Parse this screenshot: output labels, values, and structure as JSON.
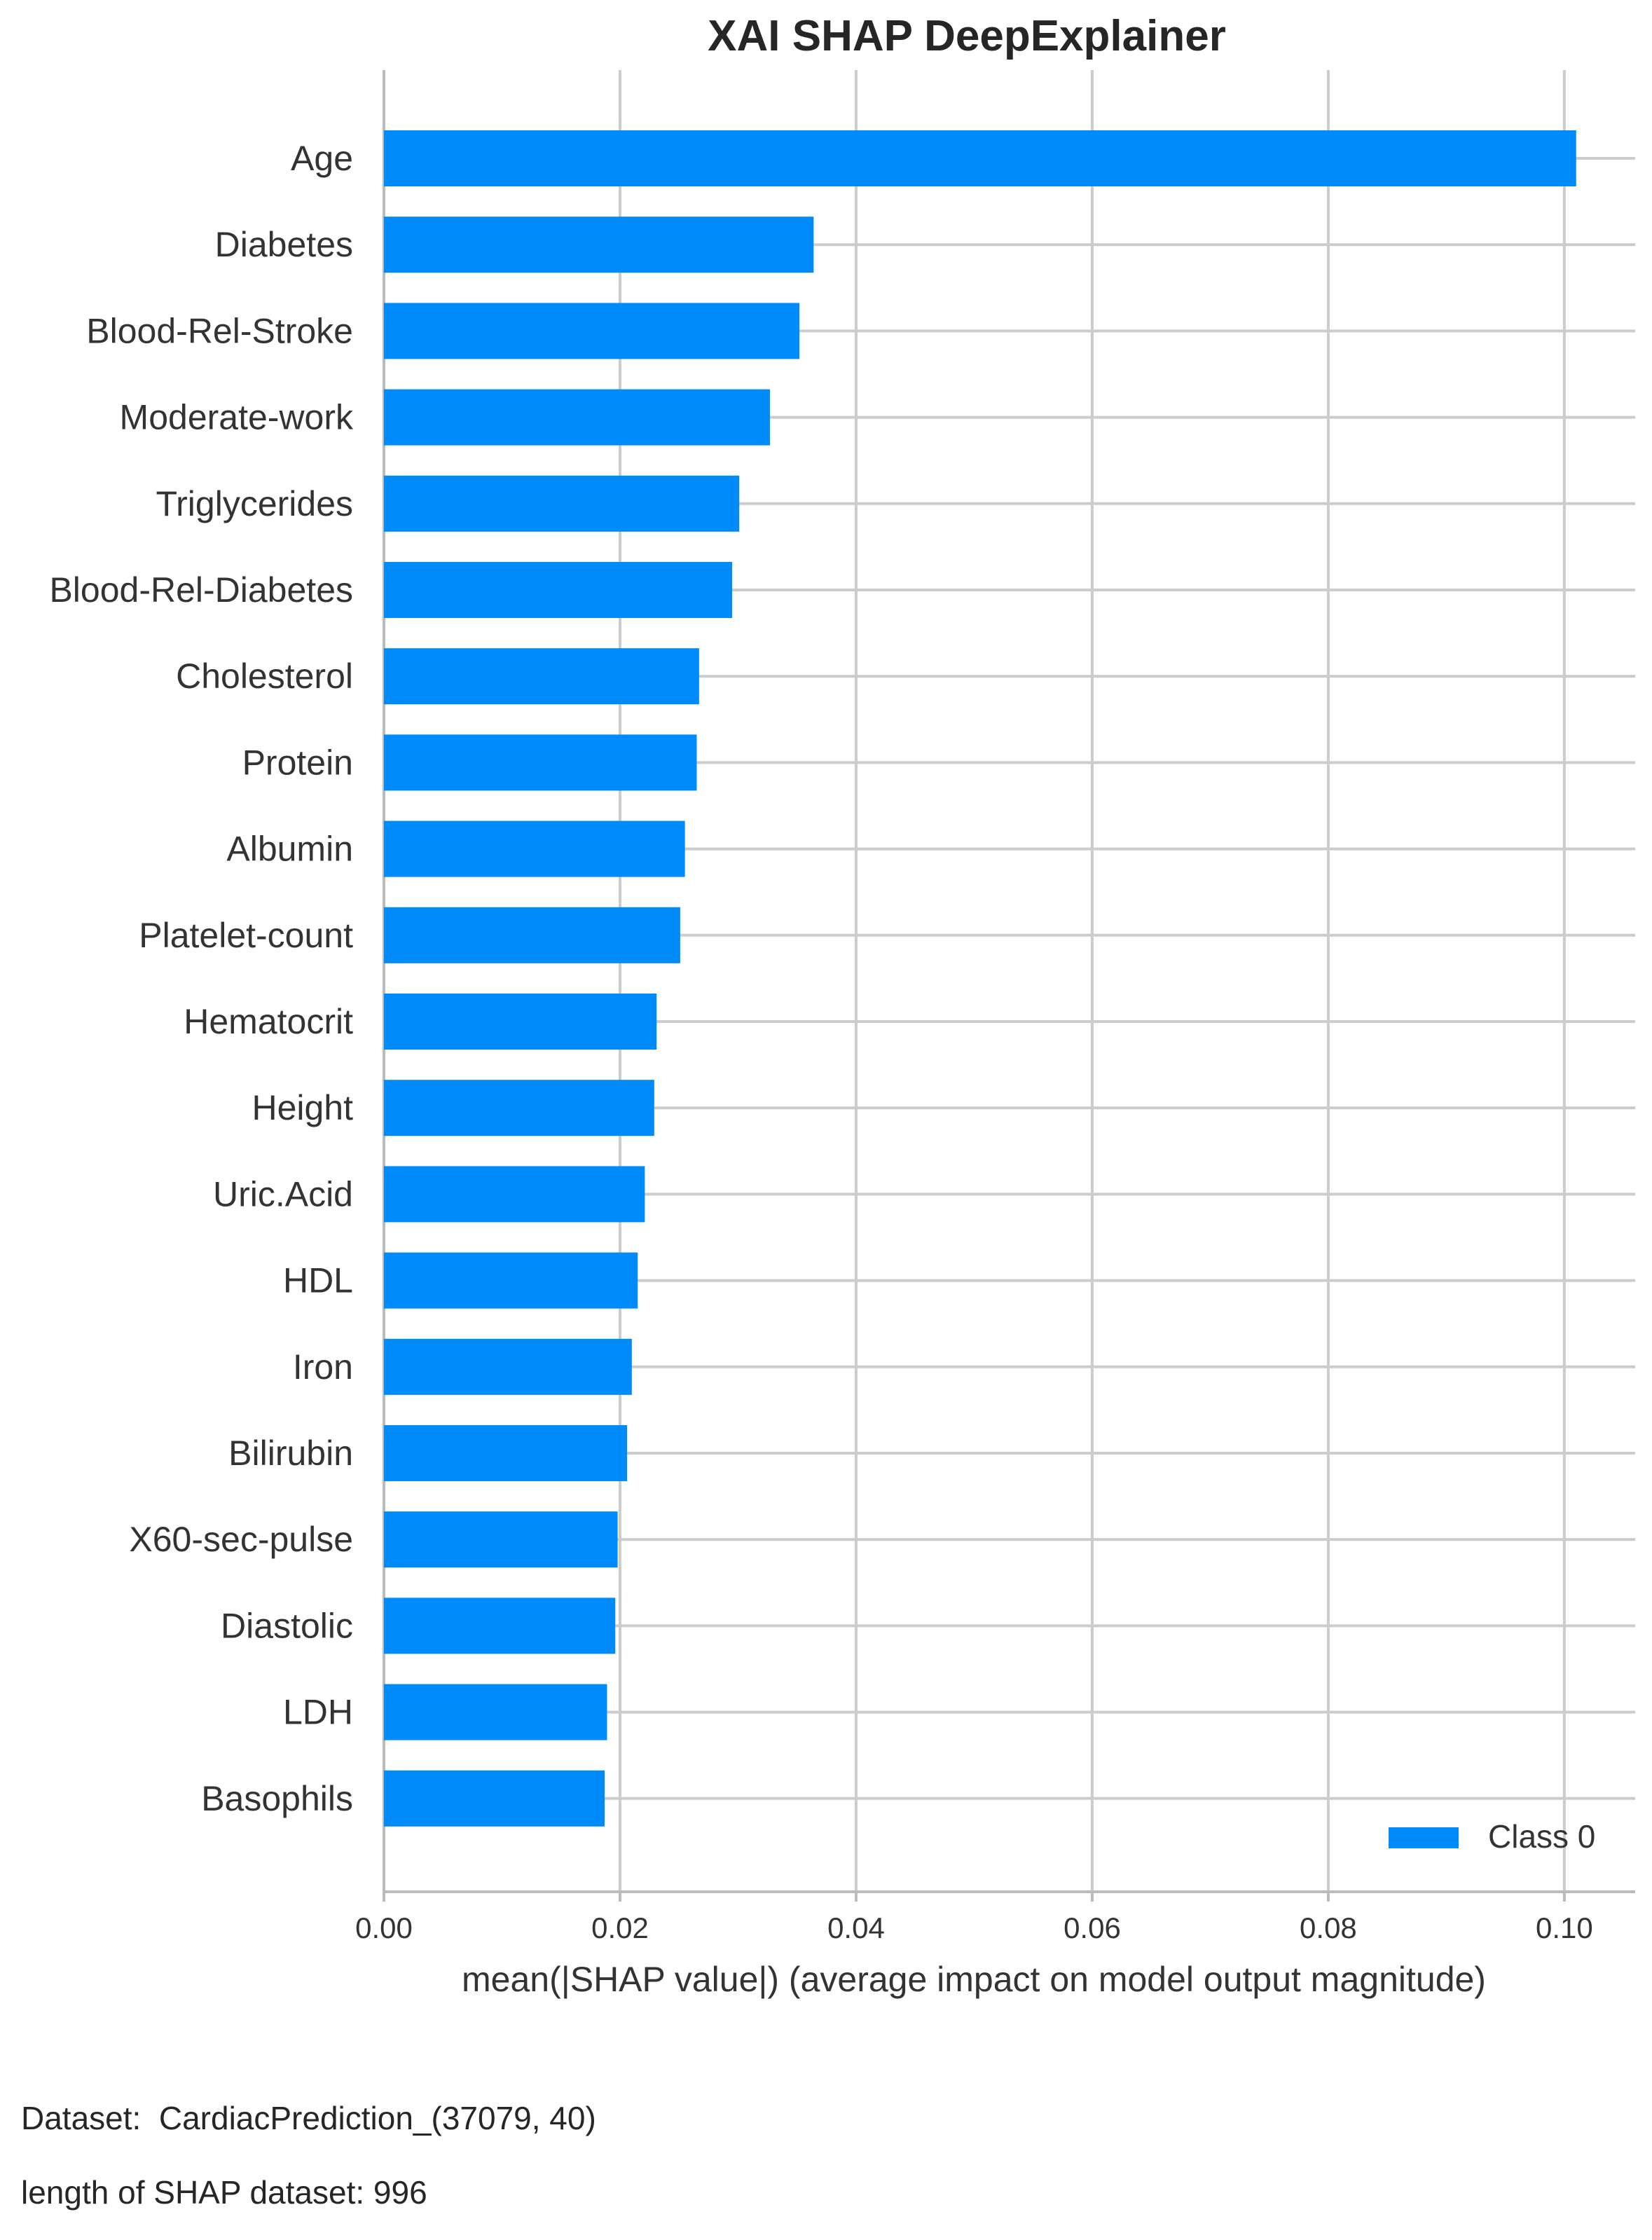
{
  "chart_data": {
    "type": "bar",
    "orientation": "horizontal",
    "title": "XAI SHAP DeepExplainer",
    "xlabel": "mean(|SHAP value|) (average impact on model output magnitude)",
    "ylabel": "",
    "xlim": [
      0,
      0.106
    ],
    "xticks": [
      "0.00",
      "0.02",
      "0.04",
      "0.06",
      "0.08",
      "0.10"
    ],
    "grid": true,
    "legend": {
      "position": "bottom-right"
    },
    "categories": [
      "Age",
      "Diabetes",
      "Blood-Rel-Stroke",
      "Moderate-work",
      "Triglycerides",
      "Blood-Rel-Diabetes",
      "Cholesterol",
      "Protein",
      "Albumin",
      "Platelet-count",
      "Hematocrit",
      "Height",
      "Uric.Acid",
      "HDL",
      "Iron",
      "Bilirubin",
      "X60-sec-pulse",
      "Diastolic",
      "LDH",
      "Basophils"
    ],
    "series": [
      {
        "name": "Class 0",
        "color": "#008bfb",
        "values": [
          0.101,
          0.0364,
          0.0352,
          0.0327,
          0.0301,
          0.0295,
          0.0267,
          0.0265,
          0.0255,
          0.0251,
          0.0231,
          0.0229,
          0.0221,
          0.0215,
          0.021,
          0.0206,
          0.0198,
          0.0196,
          0.0189,
          0.0187
        ]
      }
    ]
  },
  "footnotes": {
    "dataset": "Dataset:  CardiacPrediction_(37079, 40)",
    "shap_length": "length of SHAP dataset: 996"
  },
  "colors": {
    "grid": "#cccccc",
    "axis": "#bbbbbb",
    "text": "#333333"
  }
}
